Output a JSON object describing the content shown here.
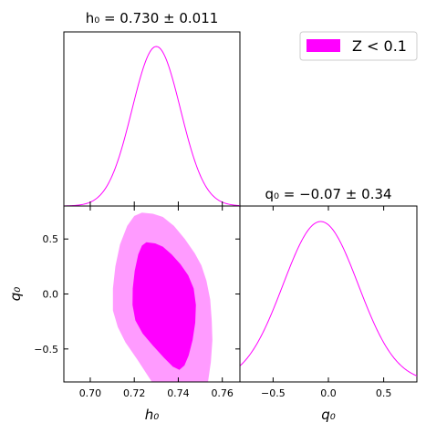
{
  "chart_data": [
    {
      "panel": "h0-marginal",
      "type": "line",
      "title": "h₀ = 0.730 ± 0.011",
      "x_param": "h₀",
      "mean": 0.73,
      "sigma": 0.011,
      "xlim": [
        0.688,
        0.768
      ],
      "color": "#ff00ff"
    },
    {
      "panel": "q0-marginal",
      "type": "line",
      "title": "q₀ = −0.07 ± 0.34",
      "xlabel": "q₀",
      "mean": -0.07,
      "sigma": 0.34,
      "xlim": [
        -0.8,
        0.8
      ],
      "xticks": [
        -0.5,
        0.0,
        0.5
      ],
      "xtick_labels": [
        "−0.5",
        "0.0",
        "0.5"
      ],
      "color": "#ff00ff"
    },
    {
      "panel": "h0-q0-joint",
      "type": "area",
      "xlabel": "h₀",
      "ylabel": "q₀",
      "xlim": [
        0.688,
        0.768
      ],
      "ylim": [
        -0.8,
        0.8
      ],
      "xticks": [
        0.7,
        0.72,
        0.74,
        0.76
      ],
      "xtick_labels": [
        "0.70",
        "0.72",
        "0.74",
        "0.76"
      ],
      "yticks": [
        0.5,
        0.0,
        -0.5
      ],
      "ytick_labels": [
        "0.5",
        "0.0",
        "−0.5"
      ],
      "series": [
        {
          "level": "95%",
          "color": "#ff9bff",
          "points": [
            [
              0.7235,
              0.74
            ],
            [
              0.7285,
              0.73
            ],
            [
              0.733,
              0.7
            ],
            [
              0.738,
              0.62
            ],
            [
              0.743,
              0.5
            ],
            [
              0.7475,
              0.37
            ],
            [
              0.7505,
              0.26
            ],
            [
              0.7528,
              0.12
            ],
            [
              0.7545,
              -0.05
            ],
            [
              0.7552,
              -0.24
            ],
            [
              0.7555,
              -0.42
            ],
            [
              0.7548,
              -0.62
            ],
            [
              0.7535,
              -0.8
            ],
            [
              0.728,
              -0.8
            ],
            [
              0.7215,
              -0.6
            ],
            [
              0.716,
              -0.44
            ],
            [
              0.7125,
              -0.3
            ],
            [
              0.7103,
              -0.15
            ],
            [
              0.7103,
              0.05
            ],
            [
              0.7114,
              0.25
            ],
            [
              0.7135,
              0.45
            ],
            [
              0.7168,
              0.62
            ],
            [
              0.72,
              0.71
            ]
          ]
        },
        {
          "level": "68%",
          "color": "#ff00ff",
          "points": [
            [
              0.7255,
              0.47
            ],
            [
              0.7295,
              0.46
            ],
            [
              0.733,
              0.43
            ],
            [
              0.737,
              0.36
            ],
            [
              0.741,
              0.27
            ],
            [
              0.7445,
              0.17
            ],
            [
              0.747,
              0.05
            ],
            [
              0.748,
              -0.1
            ],
            [
              0.7477,
              -0.26
            ],
            [
              0.7465,
              -0.42
            ],
            [
              0.7447,
              -0.56
            ],
            [
              0.7428,
              -0.65
            ],
            [
              0.7405,
              -0.69
            ],
            [
              0.7375,
              -0.66
            ],
            [
              0.7335,
              -0.58
            ],
            [
              0.7285,
              -0.47
            ],
            [
              0.7238,
              -0.36
            ],
            [
              0.7205,
              -0.24
            ],
            [
              0.7192,
              -0.1
            ],
            [
              0.7193,
              0.05
            ],
            [
              0.7202,
              0.21
            ],
            [
              0.7218,
              0.36
            ],
            [
              0.7235,
              0.44
            ]
          ]
        }
      ]
    }
  ],
  "legend": {
    "label": "Z < 0.1",
    "color": "#ff00ff",
    "position": "top-right"
  }
}
